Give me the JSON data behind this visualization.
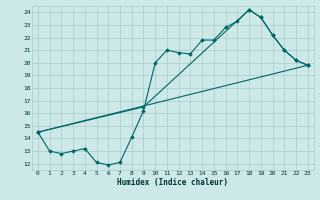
{
  "title": "",
  "xlabel": "Humidex (Indice chaleur)",
  "bg_color": "#cce8e8",
  "grid_color": "#aacccc",
  "line_color": "#006666",
  "xlim": [
    -0.5,
    23.5
  ],
  "ylim": [
    11.5,
    24.5
  ],
  "xticks": [
    0,
    1,
    2,
    3,
    4,
    5,
    6,
    7,
    8,
    9,
    10,
    11,
    12,
    13,
    14,
    15,
    16,
    17,
    18,
    19,
    20,
    21,
    22,
    23
  ],
  "yticks": [
    12,
    13,
    14,
    15,
    16,
    17,
    18,
    19,
    20,
    21,
    22,
    23,
    24
  ],
  "line1_x": [
    0,
    1,
    2,
    3,
    4,
    5,
    6,
    7,
    8,
    9,
    10,
    11,
    12,
    13,
    14,
    15,
    16,
    17,
    18,
    19,
    20,
    21,
    22,
    23
  ],
  "line1_y": [
    14.5,
    13.0,
    12.8,
    13.0,
    13.2,
    12.1,
    11.9,
    12.1,
    14.1,
    16.2,
    20.0,
    21.0,
    20.8,
    20.7,
    21.8,
    21.8,
    22.8,
    23.3,
    24.2,
    23.6,
    22.2,
    21.0,
    20.2,
    19.8
  ],
  "line2_x": [
    0,
    23
  ],
  "line2_y": [
    14.5,
    19.8
  ],
  "line3_x": [
    0,
    9,
    18,
    19,
    20,
    21,
    22,
    23
  ],
  "line3_y": [
    14.5,
    16.5,
    24.2,
    23.6,
    22.2,
    21.0,
    20.2,
    19.8
  ]
}
